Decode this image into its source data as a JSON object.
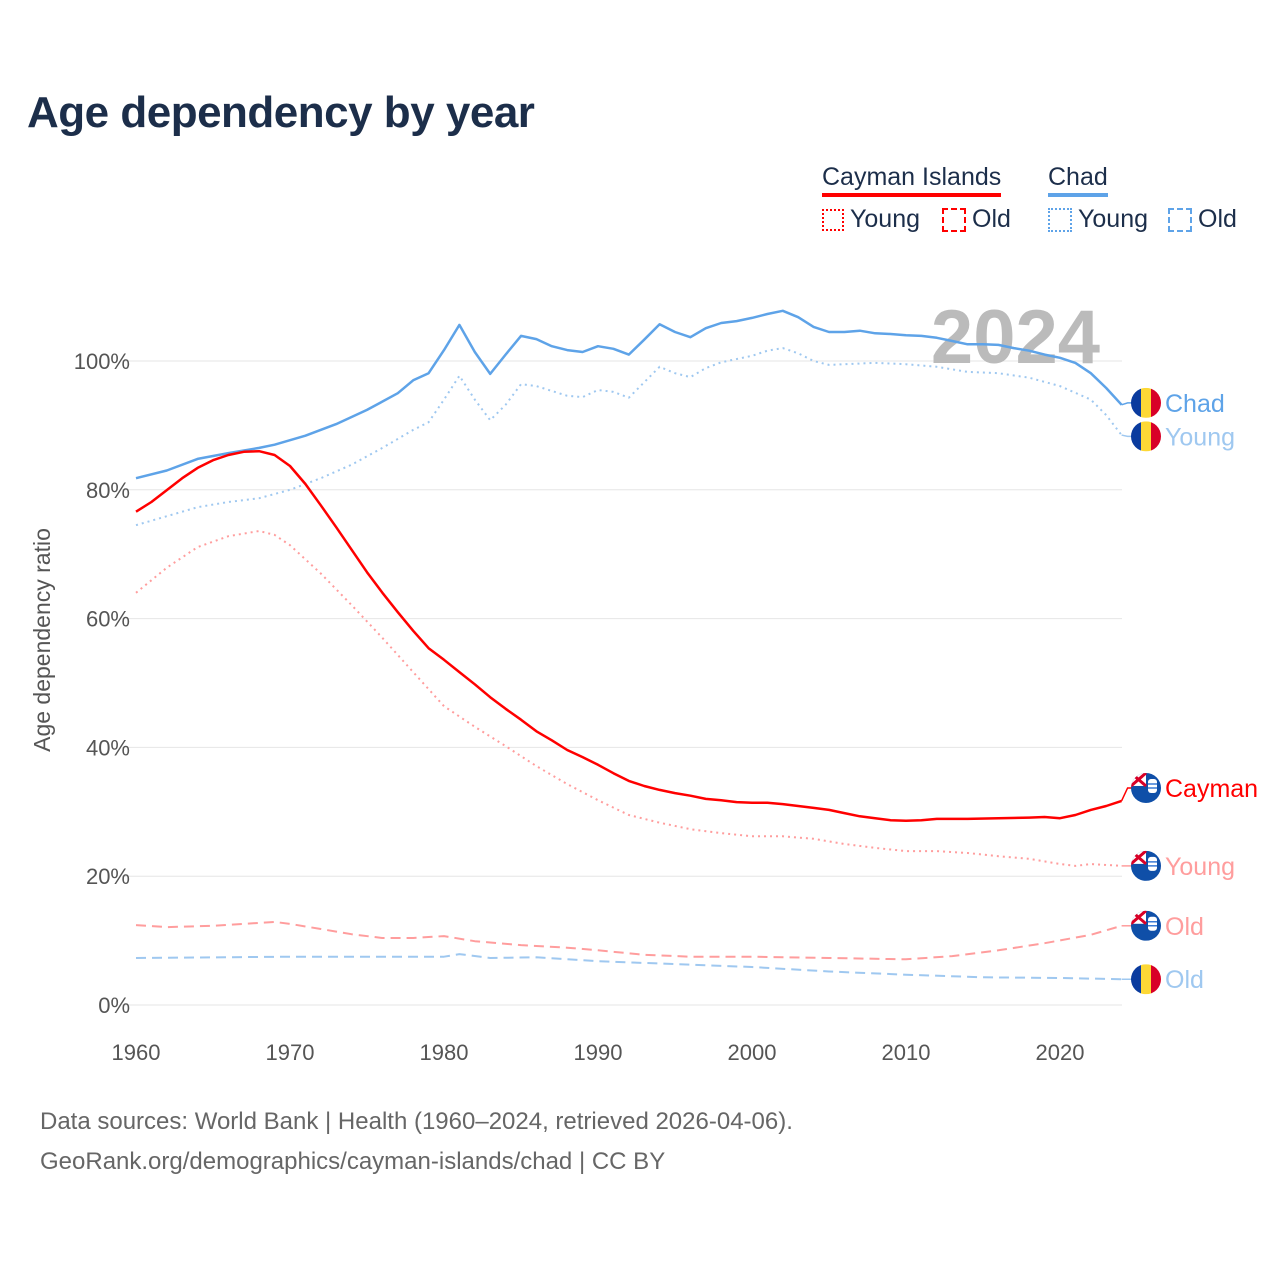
{
  "title": "Age dependency by year",
  "legend": {
    "groups": [
      {
        "name": "Cayman Islands",
        "color": "#ff0000",
        "young": "Young",
        "old": "Old"
      },
      {
        "name": "Chad",
        "color": "#5ea3e8",
        "young": "Young",
        "old": "Old"
      }
    ]
  },
  "year_label": "2024",
  "source_line1": "Data sources: World Bank | Health (1960–2024, retrieved 2026-04-06).",
  "source_line2": "GeoRank.org/demographics/cayman-islands/chad | CC BY",
  "chart_data": {
    "type": "line",
    "title": "Age dependency by year",
    "xlabel": "",
    "ylabel": "Age dependency ratio",
    "xlim": [
      1960,
      2024
    ],
    "ylim": [
      0,
      110
    ],
    "x_ticks": [
      "1960",
      "1970",
      "1980",
      "1990",
      "2000",
      "2010",
      "2020"
    ],
    "y_ticks": [
      "0%",
      "20%",
      "40%",
      "60%",
      "80%",
      "100%"
    ],
    "y_tick_values": [
      0,
      20,
      40,
      60,
      80,
      100
    ],
    "grid": true,
    "series": [
      {
        "name": "Chad",
        "end_label": "Chad",
        "country": "chad",
        "color": "#5ea3e8",
        "style": "solid",
        "label_y": 93.5,
        "x": [
          1960,
          1962,
          1964,
          1966,
          1968,
          1969,
          1971,
          1973,
          1975,
          1977,
          1978,
          1979,
          1980,
          1981,
          1982,
          1983,
          1984,
          1985,
          1986,
          1987,
          1988,
          1989,
          1990,
          1991,
          1992,
          1993,
          1994,
          1995,
          1996,
          1997,
          1998,
          1999,
          2000,
          2001,
          2002,
          2003,
          2004,
          2005,
          2006,
          2007,
          2008,
          2009,
          2010,
          2011,
          2012,
          2013,
          2014,
          2015,
          2016,
          2017,
          2018,
          2019,
          2020,
          2021,
          2022,
          2023,
          2024
        ],
        "y": [
          81.8,
          83,
          84.8,
          85.7,
          86.5,
          87,
          88.4,
          90.2,
          92.4,
          95,
          97,
          98.1,
          101.7,
          105.6,
          101.4,
          98,
          101,
          103.9,
          103.4,
          102.3,
          101.7,
          101.4,
          102.3,
          101.9,
          101,
          103.3,
          105.7,
          104.5,
          103.7,
          105.1,
          105.9,
          106.2,
          106.7,
          107.3,
          107.8,
          106.8,
          105.3,
          104.5,
          104.5,
          104.7,
          104.3,
          104.2,
          104,
          103.9,
          103.6,
          103.1,
          102.6,
          102.6,
          102.5,
          102,
          101.6,
          101,
          100.5,
          99.7,
          98.1,
          95.8,
          93.2
        ]
      },
      {
        "name": "Chad Young",
        "end_label": "Young",
        "country": "chad",
        "color": "#9fc8f0",
        "style": "dotted",
        "label_y": 88.3,
        "x": [
          1960,
          1962,
          1964,
          1966,
          1968,
          1970,
          1972,
          1974,
          1976,
          1978,
          1979,
          1980,
          1981,
          1982,
          1983,
          1984,
          1985,
          1986,
          1988,
          1989,
          1990,
          1991,
          1992,
          1993,
          1994,
          1995,
          1996,
          1997,
          1998,
          2000,
          2001,
          2002,
          2003,
          2004,
          2005,
          2006,
          2008,
          2010,
          2012,
          2014,
          2016,
          2018,
          2020,
          2022,
          2023,
          2024
        ],
        "y": [
          74.5,
          75.9,
          77.3,
          78.1,
          78.7,
          80,
          81.8,
          83.9,
          86.5,
          89.3,
          90.5,
          94,
          97.7,
          94,
          90.8,
          93.2,
          96.4,
          96.1,
          94.6,
          94.4,
          95.5,
          95.2,
          94.3,
          96.7,
          99.1,
          98.1,
          97.5,
          98.9,
          99.8,
          100.8,
          101.6,
          102,
          101.2,
          100,
          99.4,
          99.5,
          99.7,
          99.5,
          99.1,
          98.3,
          98.1,
          97.4,
          96.1,
          94,
          91.6,
          88.5
        ]
      },
      {
        "name": "Chad Old",
        "end_label": "Old",
        "country": "chad",
        "color": "#9fc8f0",
        "style": "dashed",
        "label_y": 4.0,
        "x": [
          1960,
          1970,
          1980,
          1981,
          1983,
          1986,
          1990,
          2000,
          2005,
          2010,
          2015,
          2020,
          2024
        ],
        "y": [
          7.3,
          7.5,
          7.5,
          7.9,
          7.3,
          7.4,
          6.8,
          5.9,
          5.2,
          4.7,
          4.3,
          4.2,
          4.0
        ]
      },
      {
        "name": "Cayman Islands",
        "end_label": "Cayman",
        "country": "cayman",
        "color": "#ff0000",
        "style": "solid",
        "label_y": 33.7,
        "x": [
          1960,
          1961,
          1963,
          1964,
          1965,
          1966,
          1967,
          1968,
          1969,
          1970,
          1971,
          1972,
          1973,
          1974,
          1975,
          1976,
          1977,
          1978,
          1979,
          1980,
          1981,
          1982,
          1983,
          1984,
          1985,
          1986,
          1987,
          1988,
          1989,
          1990,
          1991,
          1992,
          1993,
          1994,
          1995,
          1996,
          1997,
          1998,
          1999,
          2000,
          2001,
          2002,
          2003,
          2004,
          2005,
          2006,
          2007,
          2008,
          2009,
          2010,
          2011,
          2012,
          2014,
          2016,
          2018,
          2019,
          2020,
          2021,
          2022,
          2023,
          2024
        ],
        "y": [
          76.6,
          78.1,
          81.8,
          83.4,
          84.6,
          85.4,
          85.9,
          86,
          85.4,
          83.7,
          80.9,
          77.6,
          74.2,
          70.7,
          67.2,
          64,
          61,
          58.1,
          55.4,
          53.6,
          51.7,
          49.8,
          47.8,
          46,
          44.3,
          42.5,
          41.1,
          39.6,
          38.5,
          37.3,
          36,
          34.8,
          34,
          33.4,
          32.9,
          32.5,
          32,
          31.8,
          31.5,
          31.4,
          31.4,
          31.2,
          30.9,
          30.6,
          30.3,
          29.8,
          29.3,
          29,
          28.7,
          28.6,
          28.7,
          28.9,
          28.9,
          29,
          29.1,
          29.2,
          29,
          29.5,
          30.3,
          30.9,
          31.7
        ]
      },
      {
        "name": "Cayman Islands Young",
        "end_label": "Young",
        "country": "cayman",
        "color": "#ff9d9d",
        "style": "dotted",
        "label_y": 21.6,
        "x": [
          1960,
          1962,
          1964,
          1966,
          1968,
          1969,
          1970,
          1972,
          1974,
          1976,
          1978,
          1980,
          1982,
          1984,
          1986,
          1988,
          1990,
          1992,
          1994,
          1996,
          1998,
          2000,
          2002,
          2004,
          2006,
          2008,
          2010,
          2012,
          2014,
          2016,
          2018,
          2020,
          2021,
          2022,
          2024
        ],
        "y": [
          64,
          67.9,
          71.1,
          72.8,
          73.6,
          73,
          71.4,
          67,
          62.1,
          57,
          51.7,
          46.4,
          43.2,
          40.2,
          37.1,
          34.3,
          31.8,
          29.5,
          28.3,
          27.3,
          26.7,
          26.2,
          26.2,
          25.8,
          25,
          24.4,
          23.9,
          23.9,
          23.6,
          23.1,
          22.7,
          21.9,
          21.6,
          21.9,
          21.6
        ]
      },
      {
        "name": "Cayman Islands Old",
        "end_label": "Old",
        "country": "cayman",
        "color": "#ff9d9d",
        "style": "dashed",
        "label_y": 12.3,
        "x": [
          1960,
          1962,
          1965,
          1969,
          1970,
          1972,
          1974,
          1976,
          1978,
          1980,
          1982,
          1985,
          1988,
          1990,
          1993,
          1996,
          2000,
          2005,
          2010,
          2013,
          2016,
          2019,
          2022,
          2024
        ],
        "y": [
          12.4,
          12.1,
          12.3,
          12.9,
          12.6,
          11.8,
          11,
          10.4,
          10.4,
          10.7,
          9.9,
          9.3,
          8.9,
          8.5,
          7.8,
          7.5,
          7.5,
          7.3,
          7.1,
          7.6,
          8.5,
          9.6,
          10.9,
          12.3
        ]
      }
    ]
  }
}
